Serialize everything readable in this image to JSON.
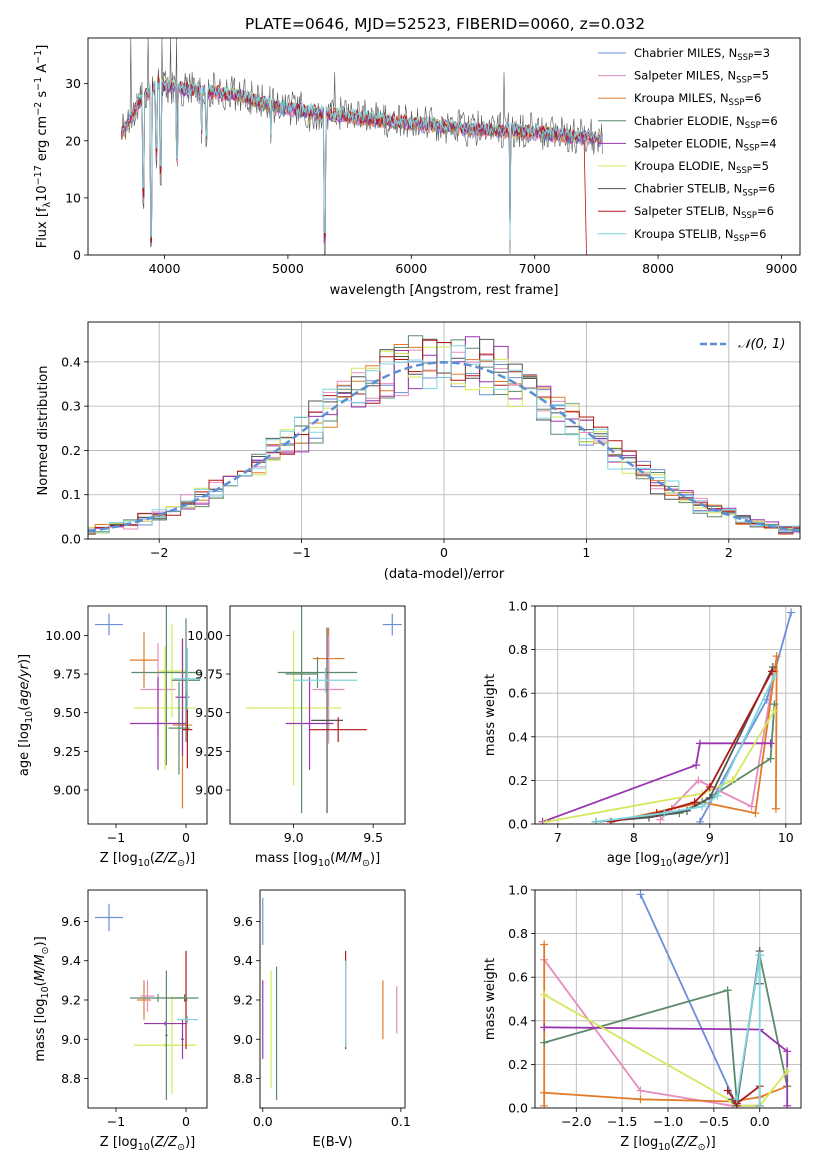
{
  "title": "PLATE=0646, MJD=52523, FIBERID=0060, z=0.032",
  "models": [
    {
      "label": "Chabrier MILES, N",
      "sub": "SSP",
      "n": "=3",
      "color": "#6b8fd8"
    },
    {
      "label": "Salpeter MILES, N",
      "sub": "SSP",
      "n": "=5",
      "color": "#e68cc0"
    },
    {
      "label": "Kroupa MILES, N",
      "sub": "SSP",
      "n": "=6",
      "color": "#e07b2a"
    },
    {
      "label": "Chabrier ELODIE, N",
      "sub": "SSP",
      "n": "=6",
      "color": "#5a8a6a"
    },
    {
      "label": "Salpeter ELODIE, N",
      "sub": "SSP",
      "n": "=4",
      "color": "#9a35b0"
    },
    {
      "label": "Kroupa ELODIE, N",
      "sub": "SSP",
      "n": "=5",
      "color": "#d4e85a"
    },
    {
      "label": "Chabrier STELIB, N",
      "sub": "SSP",
      "n": "=6",
      "color": "#555555"
    },
    {
      "label": "Salpeter STELIB, N",
      "sub": "SSP",
      "n": "=6",
      "color": "#b01818"
    },
    {
      "label": "Kroupa STELIB, N",
      "sub": "SSP",
      "n": "=6",
      "color": "#7dd6e0"
    }
  ],
  "chart_data": [
    {
      "type": "line",
      "name": "spectrum",
      "xlabel": "wavelength [Angstrom, rest frame]",
      "ylabel_parts": [
        "Flux [f",
        "λ",
        "10",
        "−17",
        " erg cm",
        "−2",
        " s",
        "−1",
        " A",
        "−1",
        "]"
      ],
      "xlim": [
        3380,
        9150
      ],
      "ylim": [
        0,
        38
      ],
      "xticks": [
        4000,
        5000,
        6000,
        7000,
        8000,
        9000
      ],
      "yticks": [
        0,
        10,
        20,
        30
      ],
      "x_range": [
        3650,
        7550
      ],
      "continuum": [
        [
          3650,
          21
        ],
        [
          3800,
          27
        ],
        [
          3950,
          30
        ],
        [
          4150,
          29
        ],
        [
          4400,
          28.5
        ],
        [
          4600,
          28
        ],
        [
          4900,
          26
        ],
        [
          5200,
          25
        ],
        [
          5600,
          24
        ],
        [
          6000,
          23
        ],
        [
          6500,
          22
        ],
        [
          7000,
          21.5
        ],
        [
          7400,
          20.5
        ]
      ],
      "absorption_lines": [
        [
          3830,
          8
        ],
        [
          3890,
          0
        ],
        [
          3935,
          15
        ],
        [
          3970,
          12
        ],
        [
          4100,
          14
        ],
        [
          4300,
          18
        ],
        [
          4340,
          18
        ],
        [
          4860,
          19
        ],
        [
          5175,
          21
        ],
        [
          5300,
          0
        ],
        [
          5890,
          20
        ],
        [
          6563,
          20
        ],
        [
          6800,
          0
        ]
      ],
      "emission_lines": [
        [
          3727,
          38
        ],
        [
          3870,
          38
        ],
        [
          3980,
          38
        ],
        [
          4050,
          38
        ],
        [
          4101,
          38
        ],
        [
          4400,
          32
        ],
        [
          5007,
          28
        ],
        [
          5380,
          32
        ],
        [
          6750,
          32
        ]
      ],
      "stelib_drop": [
        [
          7400,
          20
        ],
        [
          7420,
          0
        ]
      ]
    },
    {
      "type": "step",
      "name": "residual histogram",
      "xlabel": "(data-model)/error",
      "ylabel": "Normed distribution",
      "xlim": [
        -2.5,
        2.5
      ],
      "ylim": [
        0,
        0.49
      ],
      "xticks": [
        -2,
        -1,
        0,
        1,
        2
      ],
      "yticks": [
        0,
        0.1,
        0.2,
        0.3,
        0.4
      ],
      "grid": true,
      "legend": "top-right",
      "normal_label": "𝒩(0, 1)",
      "bin_width": 0.1
    },
    {
      "type": "scatter",
      "name": "age vs metallicity",
      "xlabel": "Z [log10(Z/Z⊙)]",
      "ylabel": "age [log10(age/yr)]",
      "xlim": [
        -1.4,
        0.3
      ],
      "ylim": [
        8.78,
        10.19
      ],
      "xticks": [
        -1,
        0
      ],
      "yticks": [
        9.0,
        9.25,
        9.5,
        9.75,
        10.0
      ],
      "points": [
        {
          "x": -0.05,
          "xerr": 0.14,
          "y": 9.42,
          "yerr": 0.54,
          "c": 2
        },
        {
          "x": -0.6,
          "xerr": 0.2,
          "y": 9.84,
          "yerr": 0.18,
          "c": 2
        },
        {
          "x": -0.4,
          "xerr": 0.25,
          "y": 9.65,
          "yerr": 0.3,
          "c": 1
        },
        {
          "x": -0.3,
          "xerr": 0.45,
          "y": 9.53,
          "yerr": 0.4,
          "c": 5
        },
        {
          "x": -0.2,
          "xerr": 0.2,
          "y": 9.77,
          "yerr": 0.3,
          "c": 5
        },
        {
          "x": -0.4,
          "xerr": 0.4,
          "y": 9.43,
          "yerr": 0.3,
          "c": 4
        },
        {
          "x": -0.05,
          "xerr": 0.1,
          "y": 9.6,
          "yerr": 0.38,
          "c": 4
        },
        {
          "x": -0.28,
          "xerr": 0.5,
          "y": 9.76,
          "yerr": 0.6,
          "c": 3
        },
        {
          "x": -0.1,
          "xerr": 0.15,
          "y": 9.4,
          "yerr": 0.3,
          "c": 3
        },
        {
          "x": 0.0,
          "xerr": 0.2,
          "y": 9.71,
          "yerr": 0.4,
          "c": 3
        },
        {
          "x": 0.02,
          "xerr": 0.07,
          "y": 9.39,
          "yerr": 0.25,
          "c": 7
        },
        {
          "x": 0.02,
          "xerr": 0.2,
          "y": 9.72,
          "yerr": 0.2,
          "c": 8
        }
      ],
      "corner_err": {
        "x": -1.1,
        "xerr": 0.2,
        "y": 10.07,
        "yerr": 0.07
      }
    },
    {
      "type": "scatter",
      "name": "age vs mass",
      "xlabel": "mass [log10(M/M⊙)]",
      "ylabel": "",
      "xlim": [
        8.6,
        9.7
      ],
      "ylim": [
        8.78,
        10.19
      ],
      "xticks": [
        9.0,
        9.5
      ],
      "yticks": [
        9.0,
        9.25,
        9.5,
        9.75,
        10.0
      ],
      "points": [
        {
          "x": 9.22,
          "xerr": 0.1,
          "y": 9.85,
          "yerr": 0.2,
          "c": 2
        },
        {
          "x": 9.22,
          "xerr": 0.1,
          "y": 9.65,
          "yerr": 0.35,
          "c": 1
        },
        {
          "x": 9.0,
          "xerr": 0.3,
          "y": 9.53,
          "yerr": 0.5,
          "c": 5
        },
        {
          "x": 9.1,
          "xerr": 0.15,
          "y": 9.43,
          "yerr": 0.3,
          "c": 4
        },
        {
          "x": 9.05,
          "xerr": 0.1,
          "y": 9.75,
          "yerr": 0.9,
          "c": 3
        },
        {
          "x": 9.15,
          "xerr": 0.25,
          "y": 9.76,
          "yerr": 0.1,
          "c": 3
        },
        {
          "x": 9.21,
          "xerr": 0.1,
          "y": 9.45,
          "yerr": 0.6,
          "c": 6
        },
        {
          "x": 9.28,
          "xerr": 0.18,
          "y": 9.39,
          "yerr": 0.08,
          "c": 7
        },
        {
          "x": 9.2,
          "xerr": 0.2,
          "y": 9.71,
          "yerr": 0.08,
          "c": 8
        }
      ],
      "corner_err": {
        "x": 9.62,
        "xerr": 0.06,
        "y": 10.07,
        "yerr": 0.07
      }
    },
    {
      "type": "line",
      "name": "mass weight vs age",
      "xlabel": "age [log10(age/yr)]",
      "ylabel": "mass weight",
      "xlim": [
        6.7,
        10.2
      ],
      "ylim": [
        0,
        1.0
      ],
      "xticks": [
        7,
        8,
        9,
        10
      ],
      "yticks": [
        0.0,
        0.2,
        0.4,
        0.6,
        0.8,
        1.0
      ],
      "grid": true,
      "series": [
        {
          "c": 0,
          "x": [
            8.87,
            9.75,
            10.07
          ],
          "y": [
            0.01,
            0.57,
            0.97
          ]
        },
        {
          "c": 1,
          "x": [
            8.35,
            8.85,
            9.55,
            9.85
          ],
          "y": [
            0.02,
            0.2,
            0.08,
            0.7
          ]
        },
        {
          "c": 2,
          "x": [
            7.7,
            8.5,
            8.9,
            9.6,
            9.88,
            9.87
          ],
          "y": [
            0.01,
            0.07,
            0.1,
            0.05,
            0.77,
            0.07
          ]
        },
        {
          "c": 3,
          "x": [
            7.5,
            8.6,
            8.9,
            9.8,
            9.85
          ],
          "y": [
            0.01,
            0.05,
            0.1,
            0.3,
            0.55
          ]
        },
        {
          "c": 4,
          "x": [
            6.8,
            8.82,
            8.87,
            9.8
          ],
          "y": [
            0.01,
            0.27,
            0.37,
            0.37
          ]
        },
        {
          "c": 5,
          "x": [
            6.85,
            8.9,
            9.3,
            9.85
          ],
          "y": [
            0.01,
            0.14,
            0.2,
            0.52
          ]
        },
        {
          "c": 6,
          "x": [
            7.5,
            8.2,
            8.7,
            9.0,
            9.83
          ],
          "y": [
            0.01,
            0.03,
            0.06,
            0.12,
            0.72
          ]
        },
        {
          "c": 7,
          "x": [
            7.7,
            8.3,
            8.8,
            9.0,
            9.82
          ],
          "y": [
            0.01,
            0.05,
            0.1,
            0.17,
            0.7
          ]
        },
        {
          "c": 8,
          "x": [
            7.5,
            8.4,
            8.9,
            9.1,
            9.85
          ],
          "y": [
            0.01,
            0.05,
            0.08,
            0.13,
            0.68
          ]
        }
      ]
    },
    {
      "type": "scatter",
      "name": "mass vs metallicity",
      "xlabel": "Z [log10(Z/Z⊙)]",
      "ylabel": "mass [log10(M/M⊙)]",
      "xlim": [
        -1.4,
        0.3
      ],
      "ylim": [
        8.65,
        9.76
      ],
      "xticks": [
        -1,
        0
      ],
      "yticks": [
        8.8,
        9.0,
        9.2,
        9.4,
        9.6
      ],
      "points": [
        {
          "x": -0.6,
          "xerr": 0.1,
          "y": 9.2,
          "yerr": 0.1,
          "c": 2
        },
        {
          "x": -0.55,
          "xerr": 0.1,
          "y": 9.22,
          "yerr": 0.08,
          "c": 1
        },
        {
          "x": -0.4,
          "xerr": 0.4,
          "y": 9.21,
          "yerr": 0.02,
          "c": 3
        },
        {
          "x": -0.3,
          "xerr": 0.45,
          "y": 8.97,
          "yerr": 0.01,
          "c": 5
        },
        {
          "x": -0.2,
          "xerr": 0.1,
          "y": 8.97,
          "yerr": 0.25,
          "c": 5
        },
        {
          "x": -0.3,
          "xerr": 0.3,
          "y": 9.08,
          "yerr": 0.01,
          "c": 4
        },
        {
          "x": -0.28,
          "xerr": 0.02,
          "y": 9.02,
          "yerr": 0.33,
          "c": 3
        },
        {
          "x": -0.05,
          "xerr": 0.02,
          "y": 9.0,
          "yerr": 0.1,
          "c": 4
        },
        {
          "x": 0.0,
          "xerr": 0.02,
          "y": 9.2,
          "yerr": 0.25,
          "c": 7
        },
        {
          "x": 0.02,
          "xerr": 0.15,
          "y": 9.1,
          "yerr": 0.02,
          "c": 8
        },
        {
          "x": -0.02,
          "xerr": 0.2,
          "y": 9.21,
          "yerr": 0.02,
          "c": 3
        }
      ],
      "corner_err": {
        "x": -1.1,
        "xerr": 0.2,
        "y": 9.62,
        "yerr": 0.07
      }
    },
    {
      "type": "scatter",
      "name": "mass vs E(B-V)",
      "xlabel": "E(B-V)",
      "ylabel": "",
      "xlim": [
        -0.002,
        0.103
      ],
      "ylim": [
        8.65,
        9.76
      ],
      "xticks": [
        0.0,
        0.1
      ],
      "yticks": [
        8.8,
        9.0,
        9.2,
        9.4,
        9.6
      ],
      "points": [
        {
          "x": 0.0,
          "y": 9.6,
          "yerr": 0.12,
          "c": 0
        },
        {
          "x": 0.0,
          "y": 9.1,
          "yerr": 0.2,
          "c": 4
        },
        {
          "x": 0.006,
          "y": 9.05,
          "yerr": 0.3,
          "c": 5
        },
        {
          "x": 0.01,
          "y": 9.03,
          "yerr": 0.34,
          "c": 3
        },
        {
          "x": 0.06,
          "y": 9.2,
          "yerr": 0.25,
          "c": 7
        },
        {
          "x": 0.06,
          "y": 9.18,
          "yerr": 0.22,
          "c": 8
        },
        {
          "x": 0.087,
          "y": 9.15,
          "yerr": 0.15,
          "c": 2
        },
        {
          "x": 0.097,
          "y": 9.15,
          "yerr": 0.12,
          "c": 1
        }
      ]
    },
    {
      "type": "line",
      "name": "mass weight vs metallicity",
      "xlabel": "Z [log10(Z/Z⊙)]",
      "ylabel": "mass weight",
      "xlim": [
        -2.45,
        0.45
      ],
      "ylim": [
        0,
        1.0
      ],
      "xticks": [
        -2.0,
        -1.5,
        -1.0,
        -0.5,
        0.0
      ],
      "yticks": [
        0.0,
        0.2,
        0.4,
        0.6,
        0.8,
        1.0
      ],
      "grid": true,
      "series": [
        {
          "c": 0,
          "x": [
            -1.3,
            -0.25,
            0.0
          ],
          "y": [
            0.98,
            0.01,
            0.01
          ]
        },
        {
          "c": 1,
          "x": [
            -2.35,
            -1.3,
            -0.3,
            0.0
          ],
          "y": [
            0.68,
            0.08,
            0.01,
            0.01
          ]
        },
        {
          "c": 2,
          "x": [
            -2.35,
            -2.35,
            -2.35,
            -1.3,
            -0.3,
            0.0,
            0.3
          ],
          "y": [
            0.75,
            0.01,
            0.07,
            0.04,
            0.03,
            0.05,
            0.1
          ]
        },
        {
          "c": 3,
          "x": [
            -2.35,
            -0.35,
            -0.25,
            0.0,
            0.3
          ],
          "y": [
            0.3,
            0.54,
            0.03,
            0.7,
            0.1
          ]
        },
        {
          "c": 4,
          "x": [
            -2.35,
            0.0,
            0.3,
            0.3
          ],
          "y": [
            0.37,
            0.36,
            0.26,
            0.01
          ]
        },
        {
          "c": 5,
          "x": [
            -2.35,
            -0.3,
            -0.25,
            0.0,
            0.3
          ],
          "y": [
            0.52,
            0.03,
            0.01,
            0.01,
            0.17
          ]
        },
        {
          "c": 6,
          "x": [
            -0.3,
            -0.25,
            0.0,
            0.0
          ],
          "y": [
            0.04,
            0.01,
            0.72,
            0.57
          ]
        },
        {
          "c": 7,
          "x": [
            -0.35,
            -0.25,
            0.0,
            0.0
          ],
          "y": [
            0.08,
            0.02,
            0.1,
            0.01
          ]
        },
        {
          "c": 8,
          "x": [
            -0.25,
            0.0,
            0.0
          ],
          "y": [
            0.04,
            0.7,
            0.01
          ]
        }
      ]
    }
  ]
}
